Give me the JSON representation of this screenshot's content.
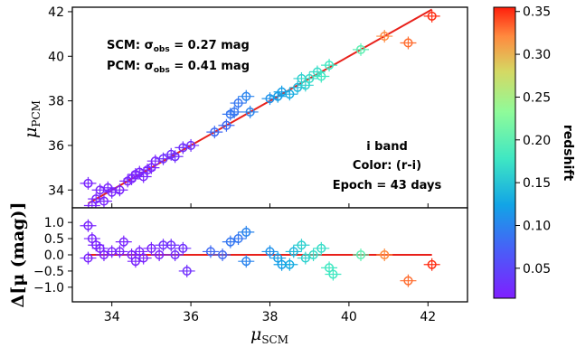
{
  "chart_data": {
    "type": "scatter",
    "top_panel": {
      "ylabel": "μ",
      "ylabel_sub": "PCM",
      "xlim": [
        33.0,
        43.0
      ],
      "ylim": [
        33.2,
        42.2
      ],
      "yticks": [
        "34",
        "36",
        "38",
        "40",
        "42"
      ],
      "ytick_values": [
        34,
        36,
        38,
        40,
        42
      ],
      "fit_line": {
        "x": [
          33.4,
          42.1
        ],
        "y": [
          33.4,
          42.1
        ],
        "color": "#e8201a"
      },
      "annotation_left": [
        "SCM: σ",
        "obs",
        " = 0.27 mag",
        "PCM: σ",
        "obs",
        " = 0.41 mag"
      ],
      "annotation_right": [
        "i band",
        "Color: (r-i)",
        "Epoch = 43 days"
      ],
      "points": [
        {
          "x": 33.4,
          "y": 34.3,
          "z": 0.02
        },
        {
          "x": 33.5,
          "y": 33.3,
          "z": 0.02
        },
        {
          "x": 33.6,
          "y": 33.6,
          "z": 0.02
        },
        {
          "x": 33.7,
          "y": 34.0,
          "z": 0.02
        },
        {
          "x": 33.8,
          "y": 33.5,
          "z": 0.02
        },
        {
          "x": 33.9,
          "y": 34.1,
          "z": 0.02
        },
        {
          "x": 34.0,
          "y": 33.9,
          "z": 0.02
        },
        {
          "x": 34.2,
          "y": 34.0,
          "z": 0.02
        },
        {
          "x": 34.4,
          "y": 34.4,
          "z": 0.02
        },
        {
          "x": 34.5,
          "y": 34.5,
          "z": 0.02
        },
        {
          "x": 34.6,
          "y": 34.7,
          "z": 0.02
        },
        {
          "x": 34.7,
          "y": 34.8,
          "z": 0.02
        },
        {
          "x": 34.8,
          "y": 34.6,
          "z": 0.02
        },
        {
          "x": 34.9,
          "y": 34.9,
          "z": 0.02
        },
        {
          "x": 35.0,
          "y": 35.0,
          "z": 0.02
        },
        {
          "x": 35.1,
          "y": 35.3,
          "z": 0.02
        },
        {
          "x": 35.3,
          "y": 35.4,
          "z": 0.03
        },
        {
          "x": 35.5,
          "y": 35.6,
          "z": 0.03
        },
        {
          "x": 35.6,
          "y": 35.5,
          "z": 0.03
        },
        {
          "x": 35.8,
          "y": 35.9,
          "z": 0.03
        },
        {
          "x": 36.0,
          "y": 36.0,
          "z": 0.03
        },
        {
          "x": 36.6,
          "y": 36.6,
          "z": 0.08
        },
        {
          "x": 36.9,
          "y": 36.9,
          "z": 0.08
        },
        {
          "x": 37.0,
          "y": 37.4,
          "z": 0.09
        },
        {
          "x": 37.1,
          "y": 37.5,
          "z": 0.09
        },
        {
          "x": 37.2,
          "y": 37.9,
          "z": 0.09
        },
        {
          "x": 37.4,
          "y": 38.2,
          "z": 0.1
        },
        {
          "x": 37.5,
          "y": 37.5,
          "z": 0.1
        },
        {
          "x": 38.0,
          "y": 38.1,
          "z": 0.11
        },
        {
          "x": 38.2,
          "y": 38.2,
          "z": 0.12
        },
        {
          "x": 38.3,
          "y": 38.4,
          "z": 0.12
        },
        {
          "x": 38.5,
          "y": 38.3,
          "z": 0.13
        },
        {
          "x": 38.7,
          "y": 38.6,
          "z": 0.14
        },
        {
          "x": 38.8,
          "y": 39.0,
          "z": 0.16
        },
        {
          "x": 38.9,
          "y": 38.7,
          "z": 0.16
        },
        {
          "x": 39.0,
          "y": 39.0,
          "z": 0.17
        },
        {
          "x": 39.2,
          "y": 39.3,
          "z": 0.17
        },
        {
          "x": 39.3,
          "y": 39.1,
          "z": 0.18
        },
        {
          "x": 39.5,
          "y": 39.6,
          "z": 0.18
        },
        {
          "x": 40.3,
          "y": 40.3,
          "z": 0.2
        },
        {
          "x": 40.9,
          "y": 40.9,
          "z": 0.32
        },
        {
          "x": 41.5,
          "y": 40.6,
          "z": 0.33
        },
        {
          "x": 42.1,
          "y": 41.8,
          "z": 0.35
        }
      ]
    },
    "bottom_panel": {
      "ylabel": "Δ[μ (mag)]",
      "xlabel": "μ",
      "xlabel_sub": "SCM",
      "xlim": [
        33.0,
        43.0
      ],
      "ylim": [
        -1.45,
        1.45
      ],
      "xticks": [
        "34",
        "36",
        "38",
        "40",
        "42"
      ],
      "xtick_values": [
        34,
        36,
        38,
        40,
        42
      ],
      "yticks": [
        "1.0",
        "0.5",
        "0.0",
        "−0.5",
        "−1.0"
      ],
      "ytick_values": [
        1.0,
        0.5,
        0.0,
        -0.5,
        -1.0
      ],
      "zero_line": {
        "x": [
          33.4,
          42.1
        ],
        "y": [
          0,
          0
        ],
        "color": "#e8201a"
      },
      "points": [
        {
          "x": 33.4,
          "y": 0.9,
          "z": 0.02
        },
        {
          "x": 33.5,
          "y": 0.5,
          "z": 0.02
        },
        {
          "x": 33.6,
          "y": 0.3,
          "z": 0.02
        },
        {
          "x": 33.7,
          "y": 0.2,
          "z": 0.02
        },
        {
          "x": 33.4,
          "y": -0.1,
          "z": 0.02
        },
        {
          "x": 33.8,
          "y": 0.0,
          "z": 0.02
        },
        {
          "x": 34.0,
          "y": 0.1,
          "z": 0.02
        },
        {
          "x": 34.2,
          "y": 0.1,
          "z": 0.02
        },
        {
          "x": 34.3,
          "y": 0.4,
          "z": 0.02
        },
        {
          "x": 34.5,
          "y": 0.0,
          "z": 0.02
        },
        {
          "x": 34.6,
          "y": -0.2,
          "z": 0.02
        },
        {
          "x": 34.7,
          "y": 0.1,
          "z": 0.02
        },
        {
          "x": 34.8,
          "y": -0.1,
          "z": 0.02
        },
        {
          "x": 35.0,
          "y": 0.2,
          "z": 0.02
        },
        {
          "x": 35.2,
          "y": 0.0,
          "z": 0.02
        },
        {
          "x": 35.3,
          "y": 0.3,
          "z": 0.03
        },
        {
          "x": 35.5,
          "y": 0.3,
          "z": 0.03
        },
        {
          "x": 35.6,
          "y": 0.0,
          "z": 0.03
        },
        {
          "x": 35.8,
          "y": 0.2,
          "z": 0.03
        },
        {
          "x": 35.9,
          "y": -0.5,
          "z": 0.03
        },
        {
          "x": 36.5,
          "y": 0.1,
          "z": 0.08
        },
        {
          "x": 36.8,
          "y": 0.0,
          "z": 0.08
        },
        {
          "x": 37.0,
          "y": 0.4,
          "z": 0.09
        },
        {
          "x": 37.2,
          "y": 0.5,
          "z": 0.09
        },
        {
          "x": 37.4,
          "y": 0.7,
          "z": 0.1
        },
        {
          "x": 37.4,
          "y": -0.2,
          "z": 0.1
        },
        {
          "x": 38.0,
          "y": 0.1,
          "z": 0.11
        },
        {
          "x": 38.2,
          "y": -0.1,
          "z": 0.12
        },
        {
          "x": 38.3,
          "y": -0.3,
          "z": 0.12
        },
        {
          "x": 38.5,
          "y": -0.3,
          "z": 0.13
        },
        {
          "x": 38.6,
          "y": 0.1,
          "z": 0.14
        },
        {
          "x": 38.8,
          "y": 0.3,
          "z": 0.16
        },
        {
          "x": 38.9,
          "y": -0.1,
          "z": 0.16
        },
        {
          "x": 39.1,
          "y": 0.0,
          "z": 0.17
        },
        {
          "x": 39.3,
          "y": 0.2,
          "z": 0.17
        },
        {
          "x": 39.5,
          "y": -0.4,
          "z": 0.18
        },
        {
          "x": 39.6,
          "y": -0.6,
          "z": 0.18
        },
        {
          "x": 40.3,
          "y": 0.0,
          "z": 0.2
        },
        {
          "x": 40.9,
          "y": 0.0,
          "z": 0.32
        },
        {
          "x": 41.5,
          "y": -0.8,
          "z": 0.33
        },
        {
          "x": 42.1,
          "y": -0.3,
          "z": 0.35
        }
      ]
    },
    "colorbar": {
      "title": "redshift",
      "range": [
        0.015,
        0.355
      ],
      "ticks": [
        "0.35",
        "0.30",
        "0.25",
        "0.20",
        "0.15",
        "0.10",
        "0.05"
      ],
      "tick_values": [
        0.35,
        0.3,
        0.25,
        0.2,
        0.15,
        0.1,
        0.05
      ],
      "colormap": "rainbow"
    }
  }
}
